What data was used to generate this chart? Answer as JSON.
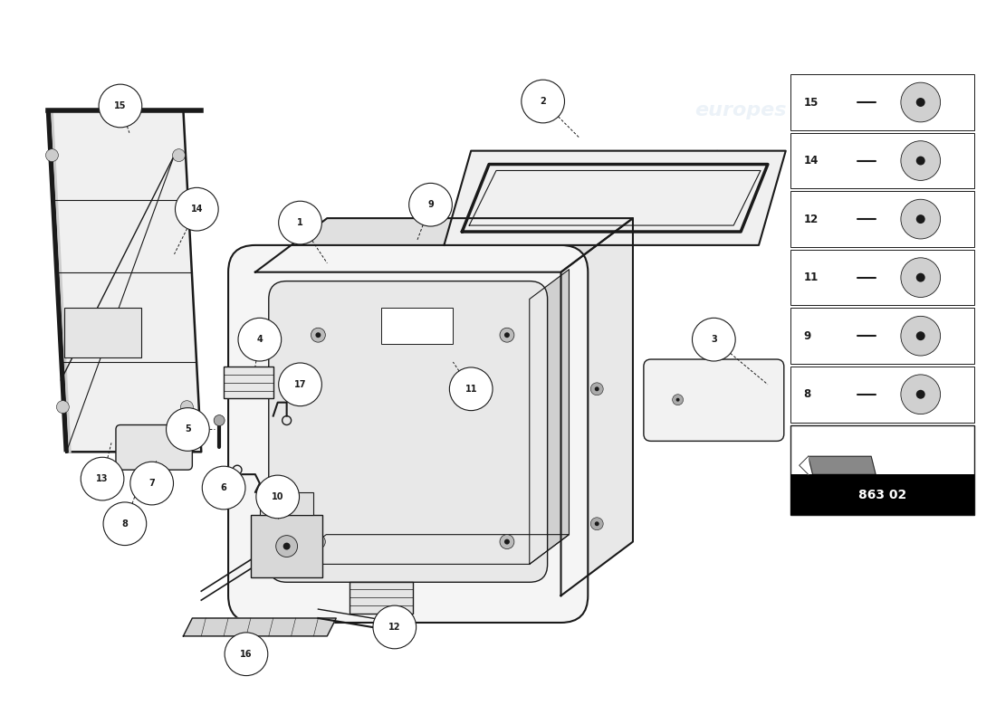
{
  "bg_color": "#ffffff",
  "line_color": "#1a1a1a",
  "part_number_box": "863 02",
  "parts_list_labels": [
    "15",
    "14",
    "12",
    "11",
    "9",
    "8"
  ]
}
